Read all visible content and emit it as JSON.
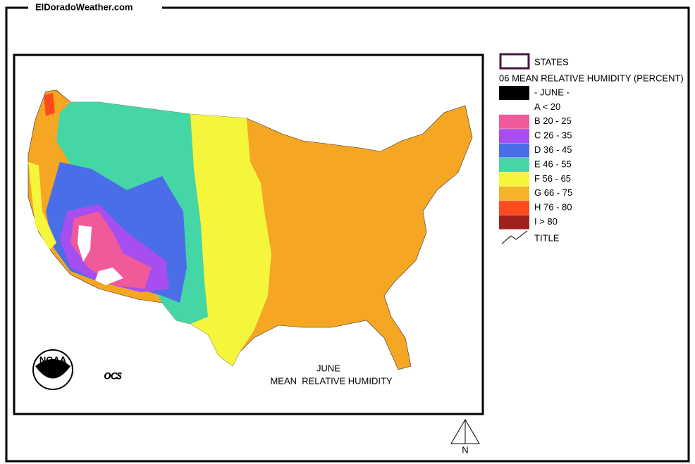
{
  "header": {
    "site": "ElDoradoWeather.com"
  },
  "legend": {
    "states": "STATES",
    "title": "06 MEAN RELATIVE HUMIDITY (PERCENT)",
    "items": [
      {
        "label": "- JUNE -",
        "color": "#000000"
      },
      {
        "label": "A < 20",
        "color": "#ffffff"
      },
      {
        "label": "B 20 - 25",
        "color": "#f05a9b"
      },
      {
        "label": "C 26 - 35",
        "color": "#a64ef0"
      },
      {
        "label": "D 36 - 45",
        "color": "#4a6ee8"
      },
      {
        "label": "E 46 - 55",
        "color": "#45d6a6"
      },
      {
        "label": "F 56 - 65",
        "color": "#f5f53c"
      },
      {
        "label": "G 66 - 75",
        "color": "#f5b428"
      },
      {
        "label": "H 76 - 80",
        "color": "#ff4a1e"
      },
      {
        "label": "I > 80",
        "color": "#a0201e"
      }
    ],
    "title_item": "TITLE"
  },
  "map": {
    "title": "JUNE",
    "subtitle": "MEAN  RELATIVE HUMIDITY",
    "logo": "OCS",
    "noaa": "NOAA"
  },
  "compass": "N"
}
